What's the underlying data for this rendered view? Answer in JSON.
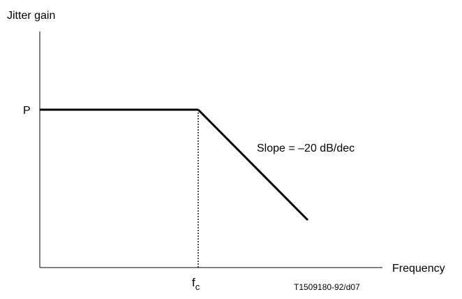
{
  "figure": {
    "y_axis_label": "Jitter gain",
    "x_axis_label": "Frequency",
    "level_label": "P",
    "corner_label": "f",
    "corner_subscript": "c",
    "slope_label": "Slope = –20 dB/dec",
    "figure_id": "T1509180-92/d07"
  },
  "colors": {
    "line": "#000000",
    "background": "#ffffff"
  }
}
